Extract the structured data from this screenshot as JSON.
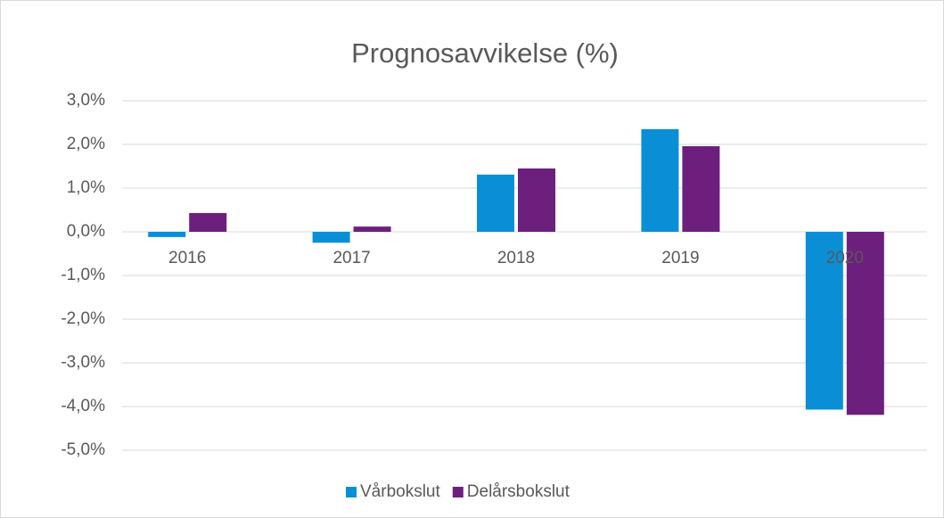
{
  "chart_data": {
    "type": "bar",
    "title": "Prognosavvikelse (%)",
    "categories": [
      "2016",
      "2017",
      "2018",
      "2019",
      "2020"
    ],
    "series": [
      {
        "name": "Vårbokslut",
        "color": "#0a8fd6",
        "values": [
          -0.12,
          -0.25,
          1.31,
          2.35,
          -4.07
        ]
      },
      {
        "name": "Delårsbokslut",
        "color": "#6d1f7e",
        "values": [
          0.43,
          0.12,
          1.45,
          1.96,
          -4.19
        ]
      }
    ],
    "ylim": [
      -5,
      3
    ],
    "yticks": [
      {
        "value": -5,
        "label": "-5,0%"
      },
      {
        "value": -4,
        "label": "-4,0%"
      },
      {
        "value": -3,
        "label": "-3,0%"
      },
      {
        "value": -2,
        "label": "-2,0%"
      },
      {
        "value": -1,
        "label": "-1,0%"
      },
      {
        "value": 0,
        "label": "0,0%"
      },
      {
        "value": 1,
        "label": "1,0%"
      },
      {
        "value": 2,
        "label": "2,0%"
      },
      {
        "value": 3,
        "label": "3,0%"
      }
    ],
    "grid": true,
    "legend": "bottom"
  }
}
